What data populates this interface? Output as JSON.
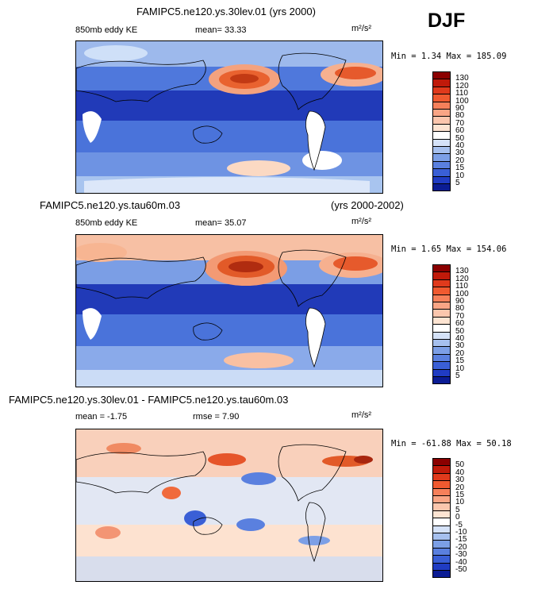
{
  "season": "DJF",
  "panels": [
    {
      "title": "FAMIPC5.ne120.ys.30lev.01 (yrs 2000)",
      "subtitle_left": "850mb eddy KE",
      "stat": "mean=  33.33",
      "units": "m²/s²",
      "minmax": "Min =   1.34 Max = 185.09",
      "levels": [
        "130",
        "120",
        "110",
        "100",
        "90",
        "80",
        "70",
        "60",
        "50",
        "40",
        "30",
        "20",
        "15",
        "10",
        "5"
      ],
      "colors": [
        "#8b0000",
        "#c01a0a",
        "#e03a1c",
        "#f05a30",
        "#f6805a",
        "#f9a585",
        "#fbc6ad",
        "#fde4d2",
        "#ffffff",
        "#d5e2f8",
        "#a6c0ee",
        "#7c9fe6",
        "#5a80df",
        "#3a5fd6",
        "#203cc3",
        "#0b1c94"
      ]
    },
    {
      "title": "FAMIPC5.ne120.ys.tau60m.03",
      "title_right": "(yrs 2000-2002)",
      "subtitle_left": "850mb eddy KE",
      "stat": "mean=  35.07",
      "units": "m²/s²",
      "minmax": "Min =   1.65 Max = 154.06",
      "levels": [
        "130",
        "120",
        "110",
        "100",
        "90",
        "80",
        "70",
        "60",
        "50",
        "40",
        "30",
        "20",
        "15",
        "10",
        "5"
      ],
      "colors": [
        "#8b0000",
        "#c01a0a",
        "#e03a1c",
        "#f05a30",
        "#f6805a",
        "#f9a585",
        "#fbc6ad",
        "#fde4d2",
        "#ffffff",
        "#d5e2f8",
        "#a6c0ee",
        "#7c9fe6",
        "#5a80df",
        "#3a5fd6",
        "#203cc3",
        "#0b1c94"
      ]
    },
    {
      "title": "FAMIPC5.ne120.ys.30lev.01 - FAMIPC5.ne120.ys.tau60m.03",
      "subtitle_left": "mean =  -1.75",
      "stat": "rmse =   7.90",
      "units": "m²/s²",
      "minmax": "Min = -61.88 Max =  50.18",
      "levels": [
        "50",
        "40",
        "30",
        "20",
        "15",
        "10",
        "5",
        "0",
        "-5",
        "-10",
        "-15",
        "-20",
        "-30",
        "-40",
        "-50"
      ],
      "colors": [
        "#8b0000",
        "#c01a0a",
        "#e03a1c",
        "#f05a30",
        "#f6805a",
        "#f9a585",
        "#fbc6ad",
        "#fde4d2",
        "#ffffff",
        "#d5e2f8",
        "#a6c0ee",
        "#7c9fe6",
        "#5a80df",
        "#3a5fd6",
        "#203cc3",
        "#0b1c94"
      ]
    }
  ]
}
